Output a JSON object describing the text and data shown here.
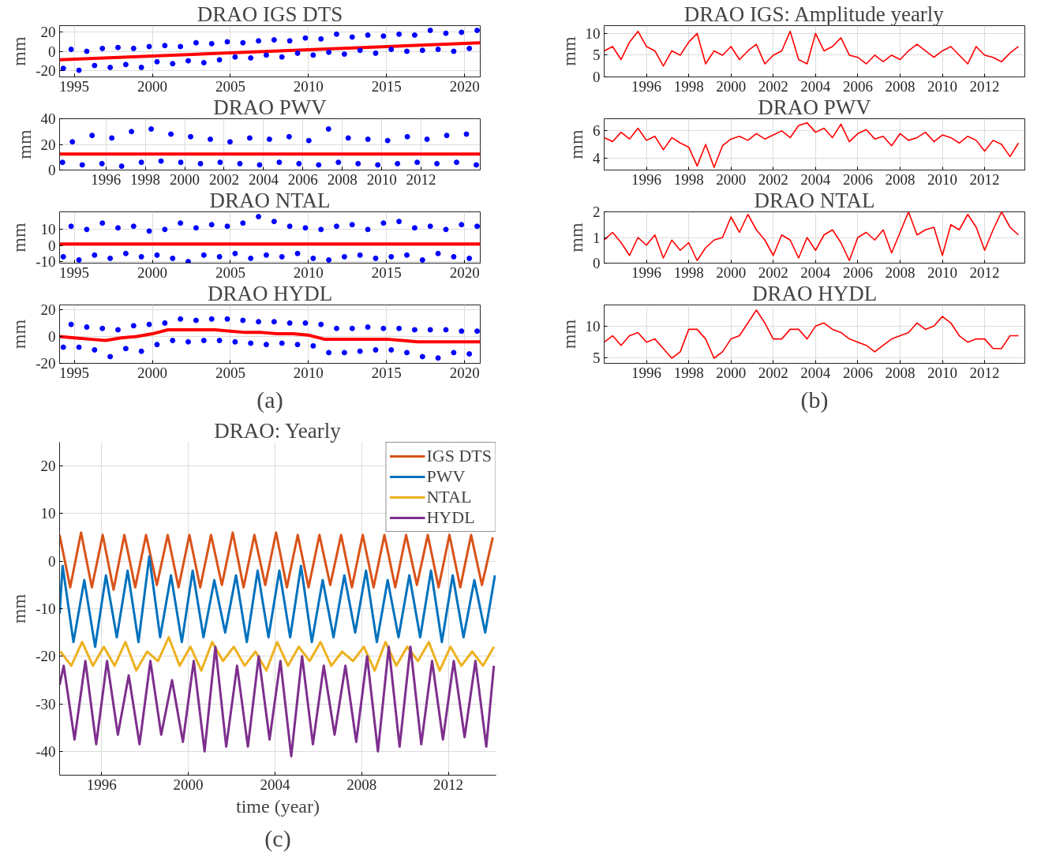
{
  "chart_data": [
    {
      "type": "scatter",
      "title": "DRAO IGS DTS",
      "ylabel": "mm",
      "xlim": [
        1994.06,
        2021.0
      ],
      "xticks": [
        1995,
        2000,
        2005,
        2010,
        2015,
        2020
      ],
      "ylim": [
        -27,
        27
      ],
      "yticks": [
        -20,
        0,
        20
      ],
      "grid": true,
      "series": [
        {
          "color": "#0000ff",
          "marker": "circle",
          "x": [
            1994.3,
            1994.8,
            1995.3,
            1995.8,
            1996.3,
            1996.8,
            1997.3,
            1997.8,
            1998.3,
            1998.8,
            1999.3,
            1999.8,
            2000.3,
            2000.8,
            2001.3,
            2001.8,
            2002.3,
            2002.8,
            2003.3,
            2003.8,
            2004.3,
            2004.8,
            2005.3,
            2005.8,
            2006.3,
            2006.8,
            2007.3,
            2007.8,
            2008.3,
            2008.8,
            2009.3,
            2009.8,
            2010.3,
            2010.8,
            2011.3,
            2011.8,
            2012.3,
            2012.8,
            2013.3,
            2013.8,
            2014.3,
            2014.8,
            2015.3,
            2015.8,
            2016.3,
            2016.8,
            2017.3,
            2017.8,
            2018.3,
            2018.8,
            2019.3,
            2019.8,
            2020.3,
            2020.8
          ],
          "values": [
            -18,
            2,
            -20,
            0,
            -15,
            3,
            -17,
            4,
            -14,
            3,
            -17,
            5,
            -11,
            6,
            -13,
            5,
            -10,
            9,
            -12,
            8,
            -9,
            10,
            -6,
            9,
            -7,
            11,
            -4,
            12,
            -6,
            11,
            -2,
            14,
            -4,
            13,
            -1,
            18,
            -3,
            15,
            1,
            17,
            -2,
            16,
            2,
            18,
            0,
            17,
            1,
            22,
            2,
            19,
            0,
            20,
            3,
            22
          ]
        },
        {
          "type": "line",
          "color": "#ff0000",
          "x": [
            1994.06,
            2021.0
          ],
          "values": [
            -9,
            9
          ]
        }
      ]
    },
    {
      "type": "scatter",
      "title": "DRAO PWV",
      "ylabel": "mm",
      "xlim": [
        1993.65,
        2015.0
      ],
      "xticks": [
        1996,
        1998,
        2000,
        2002,
        2004,
        2006,
        2008,
        2010,
        2012
      ],
      "ylim": [
        0,
        40
      ],
      "yticks": [
        0,
        20,
        40
      ],
      "grid": true,
      "series": [
        {
          "color": "#0000ff",
          "marker": "circle",
          "x": [
            1993.8,
            1994.3,
            1994.8,
            1995.3,
            1995.8,
            1996.3,
            1996.8,
            1997.3,
            1997.8,
            1998.3,
            1998.8,
            1999.3,
            1999.8,
            2000.3,
            2000.8,
            2001.3,
            2001.8,
            2002.3,
            2002.8,
            2003.3,
            2003.8,
            2004.3,
            2004.8,
            2005.3,
            2005.8,
            2006.3,
            2006.8,
            2007.3,
            2007.8,
            2008.3,
            2008.8,
            2009.3,
            2009.8,
            2010.3,
            2010.8,
            2011.3,
            2011.8,
            2012.3,
            2012.8,
            2013.3,
            2013.8,
            2014.3,
            2014.8
          ],
          "values": [
            6,
            22,
            4,
            27,
            5,
            25,
            3,
            30,
            6,
            32,
            7,
            28,
            6,
            26,
            5,
            24,
            6,
            22,
            5,
            25,
            4,
            24,
            6,
            26,
            5,
            23,
            4,
            32,
            6,
            25,
            5,
            24,
            4,
            23,
            5,
            26,
            6,
            24,
            5,
            27,
            6,
            28,
            4
          ]
        },
        {
          "type": "line",
          "color": "#ff0000",
          "x": [
            1993.65,
            2015.0
          ],
          "values": [
            12.5,
            12.5
          ]
        }
      ]
    },
    {
      "type": "scatter",
      "title": "DRAO NTAL",
      "ylabel": "mm",
      "xlim": [
        1994.06,
        2021.0
      ],
      "xticks": [
        1995,
        2000,
        2005,
        2010,
        2015,
        2020
      ],
      "ylim": [
        -11,
        21
      ],
      "yticks": [
        -10,
        0,
        10
      ],
      "grid": true,
      "series": [
        {
          "color": "#0000ff",
          "marker": "circle",
          "x": [
            1994.3,
            1994.8,
            1995.3,
            1995.8,
            1996.3,
            1996.8,
            1997.3,
            1997.8,
            1998.3,
            1998.8,
            1999.3,
            1999.8,
            2000.3,
            2000.8,
            2001.3,
            2001.8,
            2002.3,
            2002.8,
            2003.3,
            2003.8,
            2004.3,
            2004.8,
            2005.3,
            2005.8,
            2006.3,
            2006.8,
            2007.3,
            2007.8,
            2008.3,
            2008.8,
            2009.3,
            2009.8,
            2010.3,
            2010.8,
            2011.3,
            2011.8,
            2012.3,
            2012.8,
            2013.3,
            2013.8,
            2014.3,
            2014.8,
            2015.3,
            2015.8,
            2016.3,
            2016.8,
            2017.3,
            2017.8,
            2018.3,
            2018.8,
            2019.3,
            2019.8,
            2020.3,
            2020.8
          ],
          "values": [
            -7,
            12,
            -9,
            10,
            -6,
            14,
            -8,
            11,
            -5,
            12,
            -7,
            9,
            -6,
            10,
            -8,
            14,
            -10,
            11,
            -6,
            13,
            -7,
            12,
            -5,
            14,
            -8,
            18,
            -6,
            15,
            -7,
            12,
            -5,
            11,
            -8,
            10,
            -9,
            12,
            -7,
            13,
            -6,
            10,
            -8,
            14,
            -7,
            15,
            -6,
            11,
            -9,
            12,
            -5,
            10,
            -7,
            13,
            -8,
            12
          ]
        },
        {
          "type": "line",
          "color": "#ff0000",
          "x": [
            1994.06,
            2021.0
          ],
          "values": [
            1,
            1
          ]
        }
      ]
    },
    {
      "type": "scatter",
      "title": "DRAO HYDL",
      "ylabel": "mm",
      "xlim": [
        1994.06,
        2021.0
      ],
      "xticks": [
        1995,
        2000,
        2005,
        2010,
        2015,
        2020
      ],
      "ylim": [
        -20,
        23.5
      ],
      "yticks": [
        -20,
        0,
        20
      ],
      "grid": true,
      "annotations": [
        "(a)"
      ],
      "series": [
        {
          "color": "#0000ff",
          "marker": "circle",
          "x": [
            1994.3,
            1994.8,
            1995.3,
            1995.8,
            1996.3,
            1996.8,
            1997.3,
            1997.8,
            1998.3,
            1998.8,
            1999.3,
            1999.8,
            2000.3,
            2000.8,
            2001.3,
            2001.8,
            2002.3,
            2002.8,
            2003.3,
            2003.8,
            2004.3,
            2004.8,
            2005.3,
            2005.8,
            2006.3,
            2006.8,
            2007.3,
            2007.8,
            2008.3,
            2008.8,
            2009.3,
            2009.8,
            2010.3,
            2010.8,
            2011.3,
            2011.8,
            2012.3,
            2012.8,
            2013.3,
            2013.8,
            2014.3,
            2014.8,
            2015.3,
            2015.8,
            2016.3,
            2016.8,
            2017.3,
            2017.8,
            2018.3,
            2018.8,
            2019.3,
            2019.8,
            2020.3,
            2020.8
          ],
          "values": [
            -8,
            9,
            -8,
            7,
            -10,
            6,
            -15,
            5,
            -9,
            8,
            -11,
            9,
            -6,
            10,
            -3,
            13,
            -4,
            12,
            -3,
            13,
            -3,
            13,
            -4,
            12,
            -5,
            11,
            -6,
            11,
            -5,
            10,
            -6,
            10,
            -7,
            9,
            -12,
            6,
            -12,
            6,
            -11,
            7,
            -10,
            6,
            -10,
            6,
            -12,
            5,
            -15,
            5,
            -16,
            5,
            -12,
            4,
            -13,
            4
          ]
        },
        {
          "type": "line",
          "color": "#ff0000",
          "x": [
            1994.06,
            1995,
            1996,
            1997,
            1998,
            1999,
            2000,
            2001,
            2002,
            2003,
            2004,
            2005,
            2006,
            2007,
            2008,
            2009,
            2010,
            2011,
            2012,
            2013,
            2014,
            2015,
            2016,
            2017,
            2018,
            2019,
            2020,
            2021.0
          ],
          "values": [
            0,
            -1,
            -2,
            -3,
            -1,
            0,
            2,
            5,
            5,
            5,
            5,
            4,
            3,
            3,
            2,
            2,
            1,
            -2,
            -2,
            -2,
            -2,
            -2,
            -3,
            -4,
            -4,
            -4,
            -4,
            -4
          ]
        }
      ]
    },
    {
      "type": "line",
      "title": "DRAO IGS: Amplitude yearly",
      "ylabel": "mm",
      "xlim": [
        1994.0,
        2013.9
      ],
      "xticks": [
        1996,
        1998,
        2000,
        2002,
        2004,
        2006,
        2008,
        2010,
        2012
      ],
      "ylim": [
        0,
        11.8
      ],
      "yticks": [
        0,
        5,
        10
      ],
      "grid": true,
      "series": [
        {
          "color": "#ff0000",
          "x": [
            1994.0,
            1994.4,
            1994.8,
            1995.2,
            1995.6,
            1996.0,
            1996.4,
            1996.8,
            1997.2,
            1997.6,
            1998.0,
            1998.4,
            1998.8,
            1999.2,
            1999.6,
            2000.0,
            2000.4,
            2000.8,
            2001.2,
            2001.6,
            2002.0,
            2002.4,
            2002.8,
            2003.2,
            2003.6,
            2004.0,
            2004.4,
            2004.8,
            2005.2,
            2005.6,
            2006.0,
            2006.4,
            2006.8,
            2007.2,
            2007.6,
            2008.0,
            2008.4,
            2008.8,
            2009.2,
            2009.6,
            2010.0,
            2010.4,
            2010.8,
            2011.2,
            2011.6,
            2012.0,
            2012.4,
            2012.8,
            2013.2,
            2013.6
          ],
          "values": [
            6,
            7,
            4,
            8,
            10.5,
            7,
            6,
            2.5,
            6,
            5,
            8,
            10,
            3,
            6,
            5,
            7,
            4,
            6,
            7.5,
            3,
            5,
            6,
            10.5,
            4,
            3,
            10,
            6,
            7,
            9,
            5,
            4.5,
            3,
            5,
            3.5,
            5,
            4,
            6,
            7.5,
            6,
            4.5,
            6,
            7,
            5,
            3,
            7,
            5,
            4.5,
            3.5,
            5.5,
            7
          ]
        }
      ]
    },
    {
      "type": "line",
      "title": "DRAO PWV",
      "ylabel": "mm",
      "xlim": [
        1994.0,
        2013.9
      ],
      "xticks": [
        1996,
        1998,
        2000,
        2002,
        2004,
        2006,
        2008,
        2010,
        2012
      ],
      "ylim": [
        3.1,
        6.9
      ],
      "yticks": [
        4,
        6
      ],
      "grid": true,
      "series": [
        {
          "color": "#ff0000",
          "x": [
            1994.0,
            1994.4,
            1994.8,
            1995.2,
            1995.6,
            1996.0,
            1996.4,
            1996.8,
            1997.2,
            1997.6,
            1998.0,
            1998.4,
            1998.8,
            1999.2,
            1999.6,
            2000.0,
            2000.4,
            2000.8,
            2001.2,
            2001.6,
            2002.0,
            2002.4,
            2002.8,
            2003.2,
            2003.6,
            2004.0,
            2004.4,
            2004.8,
            2005.2,
            2005.6,
            2006.0,
            2006.4,
            2006.8,
            2007.2,
            2007.6,
            2008.0,
            2008.4,
            2008.8,
            2009.2,
            2009.6,
            2010.0,
            2010.4,
            2010.8,
            2011.2,
            2011.6,
            2012.0,
            2012.4,
            2012.8,
            2013.2,
            2013.6
          ],
          "values": [
            5.5,
            5.2,
            5.9,
            5.4,
            6.2,
            5.3,
            5.6,
            4.6,
            5.5,
            5.1,
            4.8,
            3.4,
            5.0,
            3.3,
            4.9,
            5.4,
            5.6,
            5.3,
            5.8,
            5.4,
            5.7,
            6.0,
            5.5,
            6.4,
            6.6,
            5.9,
            6.2,
            5.5,
            6.5,
            5.2,
            5.8,
            6.1,
            5.4,
            5.6,
            4.9,
            5.8,
            5.3,
            5.5,
            5.9,
            5.2,
            5.7,
            5.5,
            5.1,
            5.6,
            5.3,
            4.5,
            5.3,
            5.0,
            4.1,
            5.1
          ]
        }
      ]
    },
    {
      "type": "line",
      "title": "DRAO NTAL",
      "ylabel": "mm",
      "xlim": [
        1994.0,
        2013.9
      ],
      "xticks": [
        1996,
        1998,
        2000,
        2002,
        2004,
        2006,
        2008,
        2010,
        2012
      ],
      "ylim": [
        0,
        2
      ],
      "yticks": [
        0,
        1,
        2
      ],
      "grid": true,
      "series": [
        {
          "color": "#ff0000",
          "x": [
            1994.0,
            1994.4,
            1994.8,
            1995.2,
            1995.6,
            1996.0,
            1996.4,
            1996.8,
            1997.2,
            1997.6,
            1998.0,
            1998.4,
            1998.8,
            1999.2,
            1999.6,
            2000.0,
            2000.4,
            2000.8,
            2001.2,
            2001.6,
            2002.0,
            2002.4,
            2002.8,
            2003.2,
            2003.6,
            2004.0,
            2004.4,
            2004.8,
            2005.2,
            2005.6,
            2006.0,
            2006.4,
            2006.8,
            2007.2,
            2007.6,
            2008.0,
            2008.4,
            2008.8,
            2009.2,
            2009.6,
            2010.0,
            2010.4,
            2010.8,
            2011.2,
            2011.6,
            2012.0,
            2012.4,
            2012.8,
            2013.2,
            2013.6
          ],
          "values": [
            0.9,
            1.2,
            0.8,
            0.3,
            1.0,
            0.7,
            1.1,
            0.2,
            0.9,
            0.5,
            0.8,
            0.1,
            0.6,
            0.9,
            1.0,
            1.8,
            1.2,
            1.9,
            1.3,
            0.9,
            0.3,
            1.1,
            0.9,
            0.2,
            1.0,
            0.5,
            1.1,
            1.3,
            0.8,
            0.1,
            1.0,
            1.2,
            0.9,
            1.3,
            0.4,
            1.2,
            2.0,
            1.1,
            1.3,
            1.4,
            0.3,
            1.5,
            1.3,
            1.9,
            1.4,
            0.5,
            1.3,
            2.0,
            1.4,
            1.1
          ]
        }
      ]
    },
    {
      "type": "line",
      "title": "DRAO HYDL",
      "ylabel": "mm",
      "xlim": [
        1994.0,
        2013.9
      ],
      "xticks": [
        1996,
        1998,
        2000,
        2002,
        2004,
        2006,
        2008,
        2010,
        2012
      ],
      "ylim": [
        4.2,
        13.3
      ],
      "yticks": [
        5,
        10
      ],
      "grid": true,
      "annotations": [
        "(b)"
      ],
      "series": [
        {
          "color": "#ff0000",
          "x": [
            1994.0,
            1994.4,
            1994.8,
            1995.2,
            1995.6,
            1996.0,
            1996.4,
            1996.8,
            1997.2,
            1997.6,
            1998.0,
            1998.4,
            1998.8,
            1999.2,
            1999.6,
            2000.0,
            2000.4,
            2000.8,
            2001.2,
            2001.6,
            2002.0,
            2002.4,
            2002.8,
            2003.2,
            2003.6,
            2004.0,
            2004.4,
            2004.8,
            2005.2,
            2005.6,
            2006.0,
            2006.4,
            2006.8,
            2007.2,
            2007.6,
            2008.0,
            2008.4,
            2008.8,
            2009.2,
            2009.6,
            2010.0,
            2010.4,
            2010.8,
            2011.2,
            2011.6,
            2012.0,
            2012.4,
            2012.8,
            2013.2,
            2013.6
          ],
          "values": [
            7.5,
            8.5,
            7,
            8.5,
            9,
            7.5,
            8,
            6.5,
            5,
            6,
            9.5,
            9.5,
            8,
            5,
            6,
            8,
            8.5,
            10.5,
            12.5,
            10.5,
            8,
            8,
            9.5,
            9.5,
            8,
            10,
            10.5,
            9.5,
            9,
            8,
            7.5,
            7,
            6,
            7,
            8,
            8.5,
            9,
            10.5,
            9.5,
            10,
            11.5,
            10.5,
            8.5,
            7.5,
            8,
            8,
            6.5,
            6.5,
            8.5,
            8.5
          ]
        }
      ]
    },
    {
      "type": "line",
      "title": "DRAO: Yearly",
      "xlabel": "time (year)",
      "ylabel": "mm",
      "xlim": [
        1994.06,
        2014.2
      ],
      "xticks": [
        1996,
        2000,
        2004,
        2008,
        2012
      ],
      "ylim": [
        -45,
        25
      ],
      "yticks": [
        -40,
        -30,
        -20,
        -10,
        0,
        10,
        20
      ],
      "grid": true,
      "legend": "top right",
      "annotations": [
        "(c)"
      ],
      "series": [
        {
          "name": "IGS DTS",
          "color": "#d95319",
          "x": [
            1994.06,
            1994.55,
            1995.05,
            1995.55,
            1996.05,
            1996.55,
            1997.05,
            1997.55,
            1998.05,
            1998.55,
            1999.05,
            1999.55,
            2000.05,
            2000.55,
            2001.05,
            2001.55,
            2002.05,
            2002.55,
            2003.05,
            2003.55,
            2004.05,
            2004.55,
            2005.05,
            2005.55,
            2006.05,
            2006.55,
            2007.05,
            2007.55,
            2008.05,
            2008.55,
            2009.05,
            2009.55,
            2010.05,
            2010.55,
            2011.05,
            2011.55,
            2012.05,
            2012.55,
            2013.05,
            2013.55,
            2014.05
          ],
          "values": [
            5.5,
            -5.5,
            6,
            -5.5,
            5.5,
            -6,
            5.5,
            -5.5,
            5.5,
            -5,
            5.5,
            -5.5,
            5.5,
            -5.5,
            5.5,
            -5,
            6,
            -5.5,
            5.5,
            -5,
            6,
            -5.5,
            5.5,
            -5.5,
            5.5,
            -5,
            5.5,
            -5.5,
            5.5,
            -5.5,
            5.5,
            -5.5,
            5.5,
            -5,
            5.5,
            -5.5,
            5.5,
            -5.5,
            5.5,
            -5,
            5
          ]
        },
        {
          "name": "PWV",
          "color": "#0072bd",
          "x": [
            1994.06,
            1994.2,
            1994.7,
            1995.2,
            1995.7,
            1996.2,
            1996.7,
            1997.2,
            1997.7,
            1998.2,
            1998.7,
            1999.2,
            1999.7,
            2000.2,
            2000.7,
            2001.2,
            2001.7,
            2002.2,
            2002.7,
            2003.2,
            2003.7,
            2004.2,
            2004.7,
            2005.2,
            2005.7,
            2006.2,
            2006.7,
            2007.2,
            2007.7,
            2008.2,
            2008.7,
            2009.2,
            2009.7,
            2010.2,
            2010.7,
            2011.2,
            2011.7,
            2012.2,
            2012.7,
            2013.2,
            2013.7,
            2014.15
          ],
          "values": [
            -11,
            -1,
            -17,
            -4,
            -18,
            -3,
            -16,
            -2,
            -17,
            1,
            -16,
            -3,
            -17,
            -2,
            -16,
            -4,
            -15,
            -3,
            -17,
            -2,
            -16,
            -2,
            -16,
            -1,
            -17,
            -4,
            -16,
            -3,
            -15,
            -2,
            -17,
            -4,
            -16,
            -3,
            -16,
            -2,
            -17,
            -3,
            -16,
            -4,
            -15,
            -3
          ]
        },
        {
          "name": "NTAL",
          "color": "#edb120",
          "x": [
            1994.1,
            1994.6,
            1995.1,
            1995.6,
            1996.1,
            1996.6,
            1997.1,
            1997.6,
            1998.1,
            1998.6,
            1999.1,
            1999.6,
            2000.1,
            2000.6,
            2001.1,
            2001.6,
            2002.1,
            2002.6,
            2003.1,
            2003.6,
            2004.1,
            2004.6,
            2005.1,
            2005.6,
            2006.1,
            2006.6,
            2007.1,
            2007.6,
            2008.1,
            2008.6,
            2009.1,
            2009.6,
            2010.1,
            2010.6,
            2011.1,
            2011.6,
            2012.1,
            2012.6,
            2013.1,
            2013.6,
            2014.1
          ],
          "values": [
            -19,
            -22,
            -17,
            -22,
            -18,
            -22,
            -17,
            -23,
            -19,
            -21,
            -16,
            -22,
            -18,
            -23,
            -17,
            -21,
            -18,
            -22,
            -19,
            -23,
            -17,
            -22,
            -18,
            -21,
            -17,
            -22,
            -19,
            -21,
            -18,
            -23,
            -17,
            -22,
            -18,
            -21,
            -17,
            -23,
            -18,
            -22,
            -19,
            -22,
            -18
          ]
        },
        {
          "name": "HYDL",
          "color": "#7e2f8e",
          "x": [
            1994.06,
            1994.25,
            1994.75,
            1995.25,
            1995.75,
            1996.25,
            1996.75,
            1997.25,
            1997.75,
            1998.25,
            1998.75,
            1999.25,
            1999.75,
            2000.25,
            2000.75,
            2001.25,
            2001.75,
            2002.25,
            2002.75,
            2003.25,
            2003.75,
            2004.25,
            2004.75,
            2005.25,
            2005.75,
            2006.25,
            2006.75,
            2007.25,
            2007.75,
            2008.25,
            2008.75,
            2009.25,
            2009.75,
            2010.25,
            2010.75,
            2011.25,
            2011.75,
            2012.25,
            2012.75,
            2013.25,
            2013.75,
            2014.1
          ],
          "values": [
            -26,
            -22,
            -37.5,
            -21,
            -38.5,
            -21,
            -36.5,
            -24,
            -38.5,
            -21,
            -36.5,
            -25,
            -38,
            -21,
            -40,
            -18,
            -39,
            -22,
            -39,
            -20,
            -37.5,
            -21,
            -41,
            -20,
            -38.5,
            -22,
            -36.5,
            -22,
            -38,
            -20,
            -40,
            -18,
            -39,
            -18,
            -38.5,
            -21,
            -37.5,
            -21,
            -37,
            -21,
            -39,
            -22
          ]
        }
      ]
    }
  ]
}
